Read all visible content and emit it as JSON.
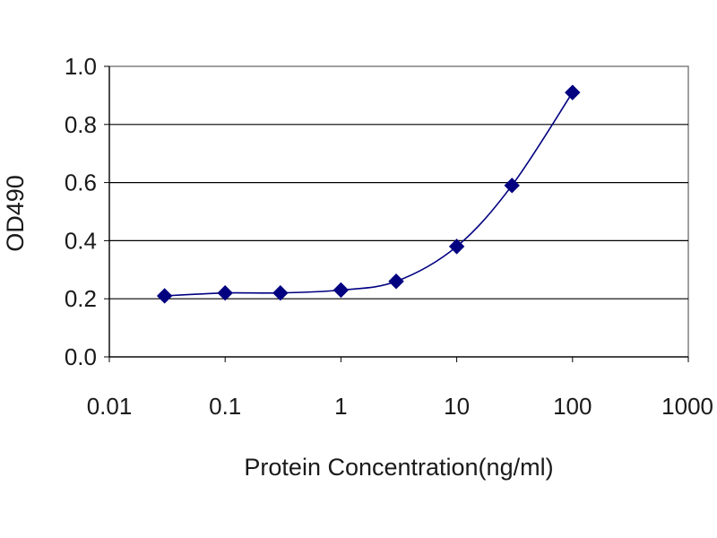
{
  "chart_data": {
    "type": "scatter",
    "title": "",
    "xlabel": "Protein Concentration(ng/ml)",
    "ylabel": "OD490",
    "x_scale": "log",
    "xlim": [
      0.01,
      1000
    ],
    "ylim": [
      0.0,
      1.0
    ],
    "x_ticks": [
      "0.01",
      "0.1",
      "1",
      "10",
      "100",
      "1000"
    ],
    "y_ticks": [
      "0.0",
      "0.2",
      "0.4",
      "0.6",
      "0.8",
      "1.0"
    ],
    "grid": "horizontal",
    "legend": "none",
    "trendline": "smooth-curve",
    "series": [
      {
        "color": "#000080",
        "x": [
          0.03,
          0.1,
          0.3,
          1,
          3,
          10,
          30,
          100
        ],
        "y": [
          0.21,
          0.22,
          0.22,
          0.23,
          0.26,
          0.38,
          0.59,
          0.91
        ]
      }
    ]
  }
}
